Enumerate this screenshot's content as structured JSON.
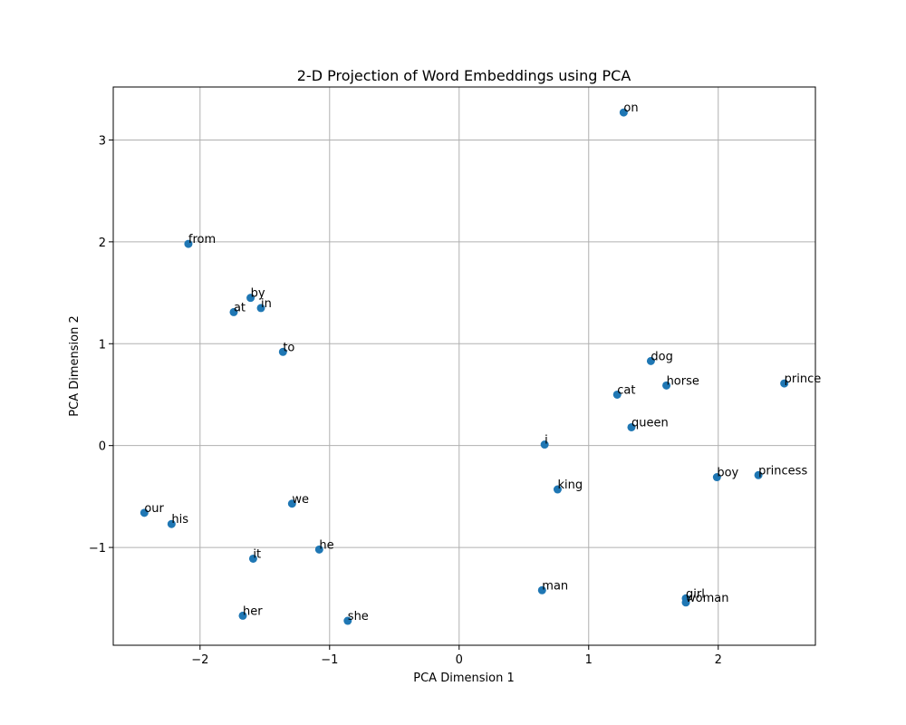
{
  "chart_data": {
    "type": "scatter",
    "title": "2-D Projection of Word Embeddings using PCA",
    "xlabel": "PCA Dimension 1",
    "ylabel": "PCA Dimension 2",
    "xlim": [
      -2.67,
      2.75
    ],
    "ylim": [
      -1.96,
      3.52
    ],
    "xticks": [
      -2,
      -1,
      0,
      1,
      2
    ],
    "yticks": [
      -1,
      0,
      1,
      2,
      3
    ],
    "grid": true,
    "point_color": "#1f77b4",
    "points": [
      {
        "label": "on",
        "x": 1.27,
        "y": 3.27
      },
      {
        "label": "from",
        "x": -2.09,
        "y": 1.98
      },
      {
        "label": "by",
        "x": -1.61,
        "y": 1.45
      },
      {
        "label": "in",
        "x": -1.53,
        "y": 1.35
      },
      {
        "label": "at",
        "x": -1.74,
        "y": 1.31
      },
      {
        "label": "to",
        "x": -1.36,
        "y": 0.92
      },
      {
        "label": "dog",
        "x": 1.48,
        "y": 0.83
      },
      {
        "label": "horse",
        "x": 1.6,
        "y": 0.59
      },
      {
        "label": "prince",
        "x": 2.51,
        "y": 0.61
      },
      {
        "label": "cat",
        "x": 1.22,
        "y": 0.5
      },
      {
        "label": "queen",
        "x": 1.33,
        "y": 0.18
      },
      {
        "label": "i",
        "x": 0.66,
        "y": 0.01
      },
      {
        "label": "boy",
        "x": 1.99,
        "y": -0.31
      },
      {
        "label": "princess",
        "x": 2.31,
        "y": -0.29
      },
      {
        "label": "king",
        "x": 0.76,
        "y": -0.43
      },
      {
        "label": "we",
        "x": -1.29,
        "y": -0.57
      },
      {
        "label": "our",
        "x": -2.43,
        "y": -0.66
      },
      {
        "label": "his",
        "x": -2.22,
        "y": -0.77
      },
      {
        "label": "he",
        "x": -1.08,
        "y": -1.02
      },
      {
        "label": "it",
        "x": -1.59,
        "y": -1.11
      },
      {
        "label": "man",
        "x": 0.64,
        "y": -1.42
      },
      {
        "label": "girl",
        "x": 1.75,
        "y": -1.5
      },
      {
        "label": "woman",
        "x": 1.75,
        "y": -1.54
      },
      {
        "label": "her",
        "x": -1.67,
        "y": -1.67
      },
      {
        "label": "she",
        "x": -0.86,
        "y": -1.72
      }
    ]
  }
}
